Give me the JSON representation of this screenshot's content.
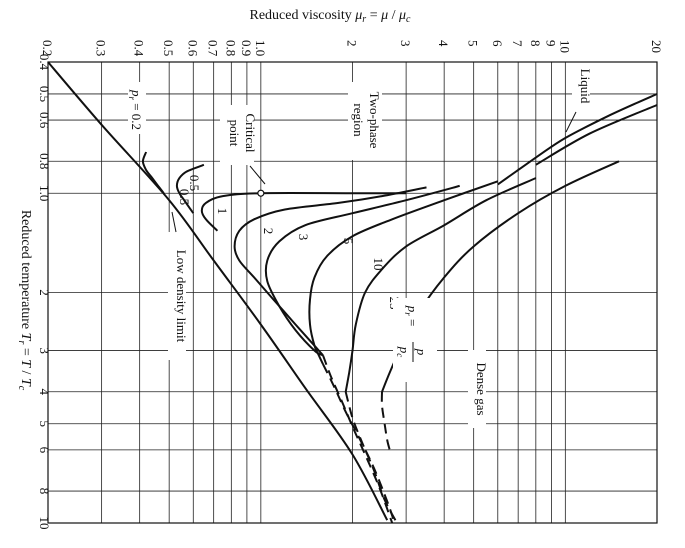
{
  "chart_data": {
    "type": "line",
    "xlabel": "Reduced viscosity μr = μ/μc",
    "ylabel": "Reduced temperature Tr = T/Tc",
    "x_scale": "log",
    "y_scale": "log",
    "xlim": [
      0.2,
      20
    ],
    "ylim": [
      0.4,
      10
    ],
    "x_ticks": [
      0.2,
      0.3,
      0.4,
      0.5,
      0.6,
      0.7,
      0.8,
      0.9,
      1.0,
      2,
      3,
      4,
      5,
      6,
      7,
      8,
      9,
      10,
      20
    ],
    "x_tick_labels": [
      "0.2",
      "0.3",
      "0.4",
      "0.5",
      "0.6",
      "0.7",
      "0.8",
      "0.9",
      "1.0",
      "2",
      "3",
      "4",
      "5",
      "6",
      "7",
      "8",
      "9",
      "10",
      "20"
    ],
    "y_ticks": [
      0.4,
      0.5,
      0.6,
      0.8,
      1.0,
      2,
      3,
      4,
      5,
      6,
      8,
      10
    ],
    "y_tick_labels": [
      "0.4",
      "0.5",
      "0.6",
      "0.8",
      "1.0",
      "2",
      "3",
      "4",
      "5",
      "6",
      "8",
      "10"
    ],
    "grid": true,
    "series": [
      {
        "name": "Low density limit",
        "style": "solid",
        "points": [
          [
            0.2,
            0.4
          ],
          [
            0.3,
            0.62
          ],
          [
            0.5,
            1.05
          ],
          [
            0.7,
            1.6
          ],
          [
            1.0,
            2.5
          ],
          [
            1.4,
            3.9
          ],
          [
            2.0,
            6.2
          ],
          [
            2.6,
            9.8
          ]
        ]
      },
      {
        "name": "pr = 0.2",
        "style": "solid",
        "points": [
          [
            0.42,
            0.75
          ],
          [
            0.41,
            0.8
          ],
          [
            0.42,
            0.85
          ],
          [
            0.44,
            0.9
          ],
          [
            0.46,
            0.95
          ],
          [
            0.48,
            1.0
          ]
        ]
      },
      {
        "name": "0.5",
        "style": "solid",
        "points": [
          [
            0.65,
            0.82
          ],
          [
            0.57,
            0.86
          ],
          [
            0.54,
            0.9
          ],
          [
            0.53,
            0.95
          ],
          [
            0.54,
            1.0
          ],
          [
            0.56,
            1.05
          ],
          [
            0.6,
            1.15
          ]
        ]
      },
      {
        "name": "1",
        "style": "solid",
        "points": [
          [
            3.0,
            1.0
          ],
          [
            2.0,
            1.0
          ],
          [
            1.0,
            1.0
          ],
          [
            0.75,
            1.02
          ],
          [
            0.66,
            1.07
          ],
          [
            0.64,
            1.13
          ],
          [
            0.66,
            1.2
          ],
          [
            0.72,
            1.3
          ]
        ]
      },
      {
        "name": "2",
        "style": "solid",
        "points": [
          [
            3.5,
            0.96
          ],
          [
            2.5,
            1.02
          ],
          [
            1.8,
            1.07
          ],
          [
            1.2,
            1.12
          ],
          [
            0.95,
            1.2
          ],
          [
            0.85,
            1.3
          ],
          [
            0.82,
            1.45
          ],
          [
            0.85,
            1.6
          ],
          [
            0.95,
            1.8
          ],
          [
            1.1,
            2.1
          ],
          [
            1.3,
            2.5
          ],
          [
            1.5,
            2.9
          ],
          [
            1.6,
            3.1
          ]
        ]
      },
      {
        "name": "3",
        "style": "solid",
        "points": [
          [
            4.5,
            0.95
          ],
          [
            3.0,
            1.05
          ],
          [
            2.0,
            1.15
          ],
          [
            1.4,
            1.25
          ],
          [
            1.15,
            1.4
          ],
          [
            1.05,
            1.6
          ],
          [
            1.05,
            1.85
          ],
          [
            1.15,
            2.2
          ],
          [
            1.3,
            2.6
          ],
          [
            1.5,
            3.0
          ],
          [
            1.6,
            3.1
          ]
        ]
      },
      {
        "name": "5",
        "style": "solid",
        "points": [
          [
            6.0,
            0.92
          ],
          [
            4.0,
            1.05
          ],
          [
            2.7,
            1.2
          ],
          [
            2.0,
            1.35
          ],
          [
            1.65,
            1.55
          ],
          [
            1.5,
            1.8
          ],
          [
            1.45,
            2.1
          ],
          [
            1.45,
            2.5
          ],
          [
            1.5,
            2.9
          ],
          [
            1.55,
            3.1
          ],
          [
            1.6,
            3.3
          ]
        ]
      },
      {
        "name": "10",
        "style": "solid",
        "points": [
          [
            8.0,
            0.9
          ],
          [
            5.5,
            1.05
          ],
          [
            4.0,
            1.25
          ],
          [
            3.0,
            1.45
          ],
          [
            2.5,
            1.7
          ],
          [
            2.2,
            2.0
          ],
          [
            2.05,
            2.5
          ],
          [
            2.0,
            3.0
          ],
          [
            1.95,
            3.5
          ],
          [
            1.9,
            4.0
          ]
        ]
      },
      {
        "name": "25",
        "style": "solid",
        "points": [
          [
            15.0,
            0.8
          ],
          [
            10.0,
            0.95
          ],
          [
            7.0,
            1.15
          ],
          [
            5.0,
            1.45
          ],
          [
            4.0,
            1.8
          ],
          [
            3.3,
            2.3
          ],
          [
            2.9,
            2.9
          ],
          [
            2.65,
            3.5
          ],
          [
            2.5,
            4.0
          ]
        ]
      },
      {
        "name": "Liquid",
        "style": "solid",
        "points": [
          [
            6.0,
            0.94
          ],
          [
            8.0,
            0.78
          ],
          [
            10.0,
            0.68
          ],
          [
            14.0,
            0.58
          ],
          [
            20.0,
            0.5
          ]
        ]
      },
      {
        "name": "",
        "style": "solid",
        "points": [
          [
            8.0,
            0.82
          ],
          [
            12.0,
            0.66
          ],
          [
            20.0,
            0.54
          ]
        ]
      },
      {
        "name": "",
        "style": "dashed",
        "points": [
          [
            1.6,
            3.1
          ],
          [
            1.7,
            3.6
          ],
          [
            1.85,
            4.3
          ],
          [
            2.0,
            5.1
          ],
          [
            2.2,
            6.2
          ],
          [
            2.45,
            7.8
          ],
          [
            2.7,
            10.0
          ]
        ]
      },
      {
        "name": "",
        "style": "dashed",
        "points": [
          [
            1.6,
            3.3
          ],
          [
            1.75,
            3.9
          ],
          [
            1.9,
            4.6
          ],
          [
            2.1,
            5.5
          ],
          [
            2.35,
            6.8
          ],
          [
            2.6,
            8.6
          ],
          [
            2.75,
            10.0
          ]
        ]
      },
      {
        "name": "",
        "style": "dashed",
        "points": [
          [
            1.9,
            4.0
          ],
          [
            2.0,
            4.8
          ],
          [
            2.15,
            5.7
          ],
          [
            2.35,
            6.9
          ],
          [
            2.55,
            8.5
          ],
          [
            2.8,
            10.0
          ]
        ]
      },
      {
        "name": "",
        "style": "dashed",
        "points": [
          [
            2.5,
            4.0
          ],
          [
            2.5,
            4.4
          ],
          [
            2.55,
            5.0
          ],
          [
            2.6,
            5.6
          ],
          [
            2.65,
            6.0
          ]
        ]
      }
    ],
    "annotations": [
      {
        "text": "Liquid"
      },
      {
        "text": "Two-phase region"
      },
      {
        "text": "Critical point"
      },
      {
        "text": "pr = 0.2"
      },
      {
        "text": "0.5"
      },
      {
        "text": "0.5"
      },
      {
        "text": "1"
      },
      {
        "text": "2"
      },
      {
        "text": "3"
      },
      {
        "text": "5"
      },
      {
        "text": "10"
      },
      {
        "text": "25"
      },
      {
        "text": "pr = p/pc"
      },
      {
        "text": "Dense gas"
      },
      {
        "text": "Low density limit"
      }
    ],
    "critical_point": [
      1.0,
      1.0
    ]
  }
}
